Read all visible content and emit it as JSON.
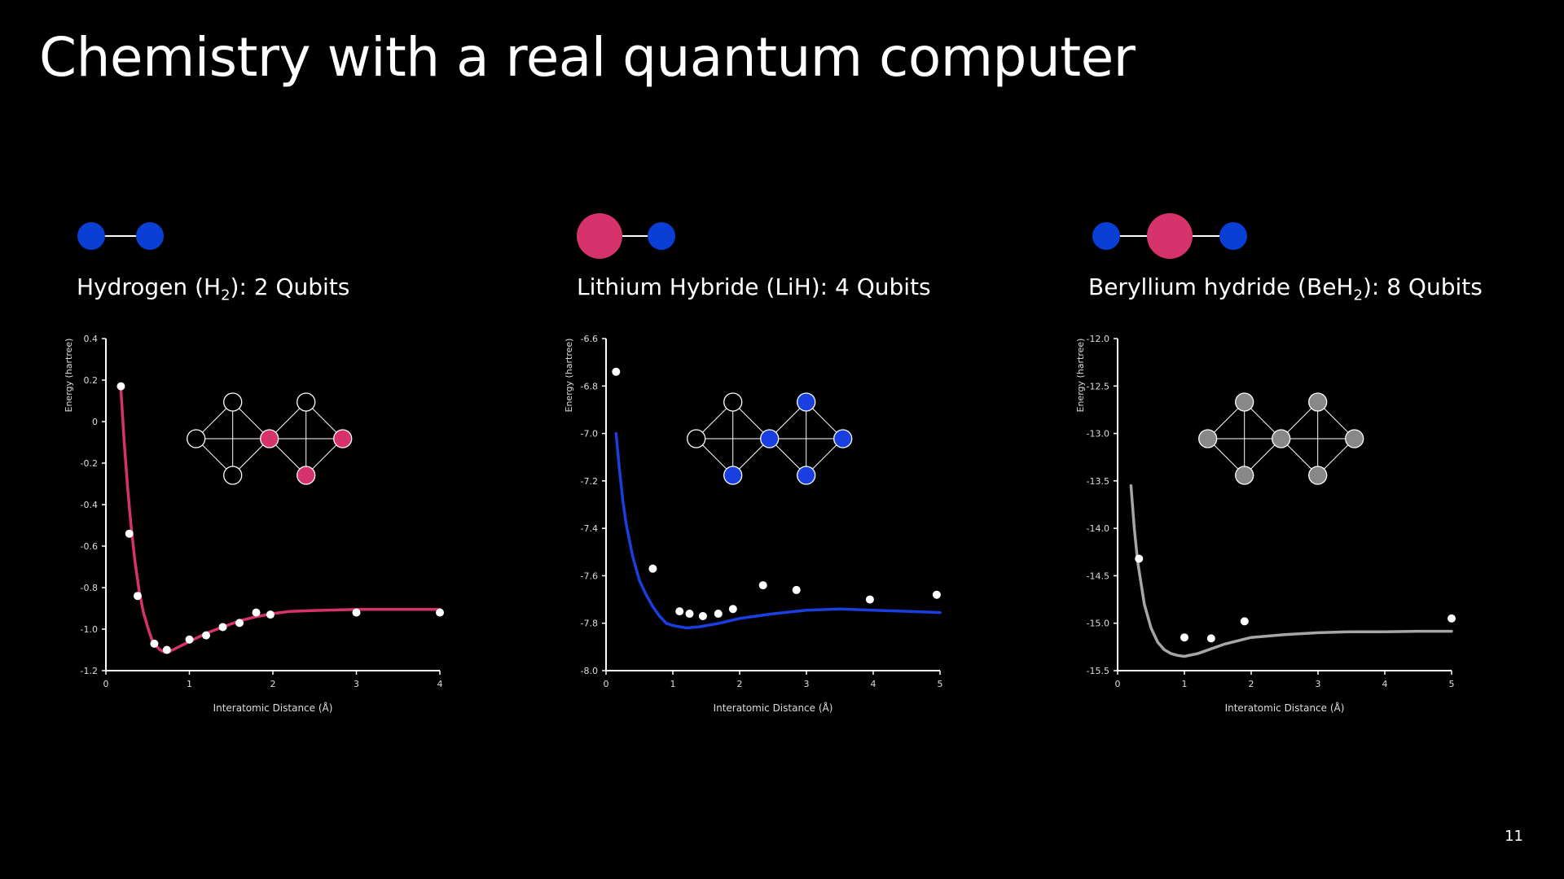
{
  "slide": {
    "title": "Chemistry with a real quantum computer",
    "page_number": "11"
  },
  "colors": {
    "hydrogen_atom": "#0a3fd6",
    "heavy_atom": "#d6336c",
    "h2_series": "#d6336c",
    "lih_series": "#1a3fe0",
    "beh2_series": "#a6a6a6"
  },
  "panels": [
    {
      "molecule_prefix": "Hydrogen (H",
      "molecule_sub": "2",
      "molecule_suffix": "): 2 Qubits"
    },
    {
      "molecule_prefix": "Lithium Hybride (LiH): 4 Qubits",
      "molecule_sub": "",
      "molecule_suffix": ""
    },
    {
      "molecule_prefix": "Beryllium hydride (BeH",
      "molecule_sub": "2",
      "molecule_suffix": "): 8 Qubits"
    }
  ],
  "chart_data": [
    {
      "type": "line",
      "xlabel": "Interatomic Distance (Å)",
      "ylabel": "Energy (hartree)",
      "xlim": [
        0,
        4
      ],
      "ylim": [
        -1.2,
        0.4
      ],
      "xticks": [
        "0",
        "1",
        "2",
        "3",
        "4"
      ],
      "yticks": [
        "0.4",
        "0.2",
        "0",
        "-0.2",
        "-0.4",
        "-0.6",
        "-0.8",
        "-1.0",
        "-1.2"
      ],
      "series": [
        {
          "kind": "curve",
          "x": [
            0.18,
            0.22,
            0.26,
            0.3,
            0.35,
            0.4,
            0.45,
            0.5,
            0.55,
            0.6,
            0.65,
            0.7,
            0.75,
            0.8,
            0.9,
            1.0,
            1.2,
            1.4,
            1.6,
            1.8,
            2.0,
            2.2,
            2.5,
            3.0,
            3.5,
            4.0
          ],
          "y": [
            0.15,
            -0.1,
            -0.32,
            -0.5,
            -0.68,
            -0.82,
            -0.92,
            -0.99,
            -1.05,
            -1.08,
            -1.1,
            -1.11,
            -1.11,
            -1.1,
            -1.08,
            -1.06,
            -1.02,
            -0.99,
            -0.96,
            -0.94,
            -0.925,
            -0.915,
            -0.91,
            -0.905,
            -0.905,
            -0.905
          ]
        },
        {
          "kind": "points",
          "x": [
            0.18,
            0.28,
            0.38,
            0.58,
            0.73,
            1.0,
            1.2,
            1.4,
            1.6,
            1.8,
            1.97,
            3.0,
            4.0
          ],
          "y": [
            0.17,
            -0.54,
            -0.84,
            -1.07,
            -1.1,
            -1.05,
            -1.03,
            -0.99,
            -0.97,
            -0.92,
            -0.93,
            -0.92,
            -0.92
          ]
        }
      ]
    },
    {
      "type": "line",
      "xlabel": "Interatomic Distance (Å)",
      "ylabel": "Energy (hartree)",
      "xlim": [
        0,
        5
      ],
      "ylim": [
        -8.0,
        -6.6
      ],
      "xticks": [
        "0",
        "1",
        "2",
        "3",
        "4",
        "5"
      ],
      "yticks": [
        "-6.6",
        "-6.8",
        "-7.0",
        "-7.2",
        "-7.4",
        "-7.6",
        "-7.8",
        "-8.0"
      ],
      "series": [
        {
          "kind": "curve",
          "x": [
            0.15,
            0.2,
            0.25,
            0.3,
            0.4,
            0.5,
            0.6,
            0.7,
            0.8,
            0.9,
            1.0,
            1.2,
            1.4,
            1.7,
            2.0,
            2.5,
            3.0,
            3.5,
            4.0,
            4.5,
            5.0
          ],
          "y": [
            -7.0,
            -7.15,
            -7.28,
            -7.38,
            -7.52,
            -7.62,
            -7.68,
            -7.73,
            -7.77,
            -7.8,
            -7.81,
            -7.82,
            -7.815,
            -7.8,
            -7.78,
            -7.76,
            -7.745,
            -7.74,
            -7.745,
            -7.75,
            -7.755
          ]
        },
        {
          "kind": "points",
          "x": [
            0.15,
            0.7,
            1.1,
            1.25,
            1.45,
            1.68,
            1.9,
            2.35,
            2.85,
            3.95,
            4.95
          ],
          "y": [
            -6.74,
            -7.57,
            -7.75,
            -7.76,
            -7.77,
            -7.76,
            -7.74,
            -7.64,
            -7.66,
            -7.7,
            -7.68
          ]
        }
      ]
    },
    {
      "type": "line",
      "xlabel": "Interatomic Distance (Å)",
      "ylabel": "Energy (hartree)",
      "xlim": [
        0,
        5
      ],
      "ylim": [
        -15.5,
        -12.0
      ],
      "xticks": [
        "0",
        "1",
        "2",
        "3",
        "4",
        "5"
      ],
      "yticks": [
        "-12.0",
        "-12.5",
        "-13.0",
        "-13.5",
        "-14.0",
        "-14.5",
        "-15.0",
        "-15.5"
      ],
      "series": [
        {
          "kind": "curve",
          "x": [
            0.2,
            0.25,
            0.3,
            0.4,
            0.5,
            0.6,
            0.7,
            0.8,
            0.9,
            1.0,
            1.2,
            1.4,
            1.6,
            2.0,
            2.5,
            3.0,
            3.5,
            4.0,
            4.5,
            5.0
          ],
          "y": [
            -13.55,
            -14.0,
            -14.35,
            -14.8,
            -15.05,
            -15.2,
            -15.28,
            -15.32,
            -15.34,
            -15.35,
            -15.32,
            -15.27,
            -15.22,
            -15.15,
            -15.12,
            -15.1,
            -15.09,
            -15.09,
            -15.085,
            -15.085
          ]
        },
        {
          "kind": "points",
          "x": [
            0.32,
            1.0,
            1.4,
            1.9,
            5.0
          ],
          "y": [
            -14.32,
            -15.15,
            -15.16,
            -14.98,
            -14.95
          ]
        }
      ]
    }
  ]
}
